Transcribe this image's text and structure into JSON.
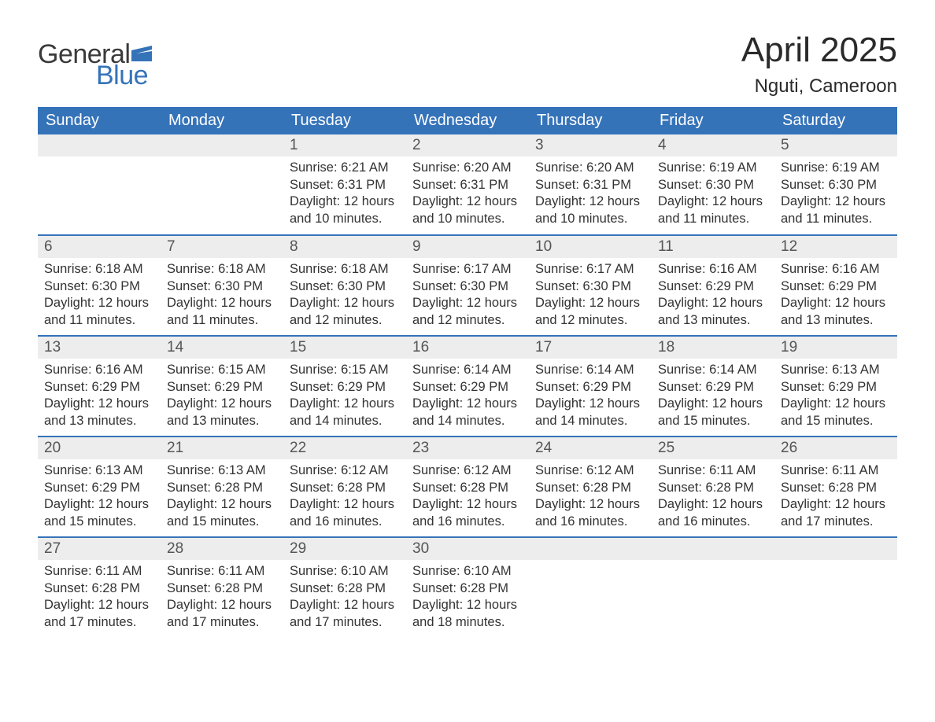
{
  "logo": {
    "text1": "General",
    "text2": "Blue",
    "flag_color": "#3573b9"
  },
  "title": "April 2025",
  "location": "Nguti, Cameroon",
  "colors": {
    "header_bg": "#3573b9",
    "header_text": "#ffffff",
    "daynum_bg": "#ededed",
    "row_divider": "#3573b9",
    "body_text": "#333333",
    "daynum_text": "#555555"
  },
  "day_headers": [
    "Sunday",
    "Monday",
    "Tuesday",
    "Wednesday",
    "Thursday",
    "Friday",
    "Saturday"
  ],
  "weeks": [
    [
      null,
      null,
      {
        "n": "1",
        "sunrise": "6:21 AM",
        "sunset": "6:31 PM",
        "daylight": "12 hours and 10 minutes."
      },
      {
        "n": "2",
        "sunrise": "6:20 AM",
        "sunset": "6:31 PM",
        "daylight": "12 hours and 10 minutes."
      },
      {
        "n": "3",
        "sunrise": "6:20 AM",
        "sunset": "6:31 PM",
        "daylight": "12 hours and 10 minutes."
      },
      {
        "n": "4",
        "sunrise": "6:19 AM",
        "sunset": "6:30 PM",
        "daylight": "12 hours and 11 minutes."
      },
      {
        "n": "5",
        "sunrise": "6:19 AM",
        "sunset": "6:30 PM",
        "daylight": "12 hours and 11 minutes."
      }
    ],
    [
      {
        "n": "6",
        "sunrise": "6:18 AM",
        "sunset": "6:30 PM",
        "daylight": "12 hours and 11 minutes."
      },
      {
        "n": "7",
        "sunrise": "6:18 AM",
        "sunset": "6:30 PM",
        "daylight": "12 hours and 11 minutes."
      },
      {
        "n": "8",
        "sunrise": "6:18 AM",
        "sunset": "6:30 PM",
        "daylight": "12 hours and 12 minutes."
      },
      {
        "n": "9",
        "sunrise": "6:17 AM",
        "sunset": "6:30 PM",
        "daylight": "12 hours and 12 minutes."
      },
      {
        "n": "10",
        "sunrise": "6:17 AM",
        "sunset": "6:30 PM",
        "daylight": "12 hours and 12 minutes."
      },
      {
        "n": "11",
        "sunrise": "6:16 AM",
        "sunset": "6:29 PM",
        "daylight": "12 hours and 13 minutes."
      },
      {
        "n": "12",
        "sunrise": "6:16 AM",
        "sunset": "6:29 PM",
        "daylight": "12 hours and 13 minutes."
      }
    ],
    [
      {
        "n": "13",
        "sunrise": "6:16 AM",
        "sunset": "6:29 PM",
        "daylight": "12 hours and 13 minutes."
      },
      {
        "n": "14",
        "sunrise": "6:15 AM",
        "sunset": "6:29 PM",
        "daylight": "12 hours and 13 minutes."
      },
      {
        "n": "15",
        "sunrise": "6:15 AM",
        "sunset": "6:29 PM",
        "daylight": "12 hours and 14 minutes."
      },
      {
        "n": "16",
        "sunrise": "6:14 AM",
        "sunset": "6:29 PM",
        "daylight": "12 hours and 14 minutes."
      },
      {
        "n": "17",
        "sunrise": "6:14 AM",
        "sunset": "6:29 PM",
        "daylight": "12 hours and 14 minutes."
      },
      {
        "n": "18",
        "sunrise": "6:14 AM",
        "sunset": "6:29 PM",
        "daylight": "12 hours and 15 minutes."
      },
      {
        "n": "19",
        "sunrise": "6:13 AM",
        "sunset": "6:29 PM",
        "daylight": "12 hours and 15 minutes."
      }
    ],
    [
      {
        "n": "20",
        "sunrise": "6:13 AM",
        "sunset": "6:29 PM",
        "daylight": "12 hours and 15 minutes."
      },
      {
        "n": "21",
        "sunrise": "6:13 AM",
        "sunset": "6:28 PM",
        "daylight": "12 hours and 15 minutes."
      },
      {
        "n": "22",
        "sunrise": "6:12 AM",
        "sunset": "6:28 PM",
        "daylight": "12 hours and 16 minutes."
      },
      {
        "n": "23",
        "sunrise": "6:12 AM",
        "sunset": "6:28 PM",
        "daylight": "12 hours and 16 minutes."
      },
      {
        "n": "24",
        "sunrise": "6:12 AM",
        "sunset": "6:28 PM",
        "daylight": "12 hours and 16 minutes."
      },
      {
        "n": "25",
        "sunrise": "6:11 AM",
        "sunset": "6:28 PM",
        "daylight": "12 hours and 16 minutes."
      },
      {
        "n": "26",
        "sunrise": "6:11 AM",
        "sunset": "6:28 PM",
        "daylight": "12 hours and 17 minutes."
      }
    ],
    [
      {
        "n": "27",
        "sunrise": "6:11 AM",
        "sunset": "6:28 PM",
        "daylight": "12 hours and 17 minutes."
      },
      {
        "n": "28",
        "sunrise": "6:11 AM",
        "sunset": "6:28 PM",
        "daylight": "12 hours and 17 minutes."
      },
      {
        "n": "29",
        "sunrise": "6:10 AM",
        "sunset": "6:28 PM",
        "daylight": "12 hours and 17 minutes."
      },
      {
        "n": "30",
        "sunrise": "6:10 AM",
        "sunset": "6:28 PM",
        "daylight": "12 hours and 18 minutes."
      },
      null,
      null,
      null
    ]
  ],
  "labels": {
    "sunrise": "Sunrise: ",
    "sunset": "Sunset: ",
    "daylight": "Daylight: "
  }
}
